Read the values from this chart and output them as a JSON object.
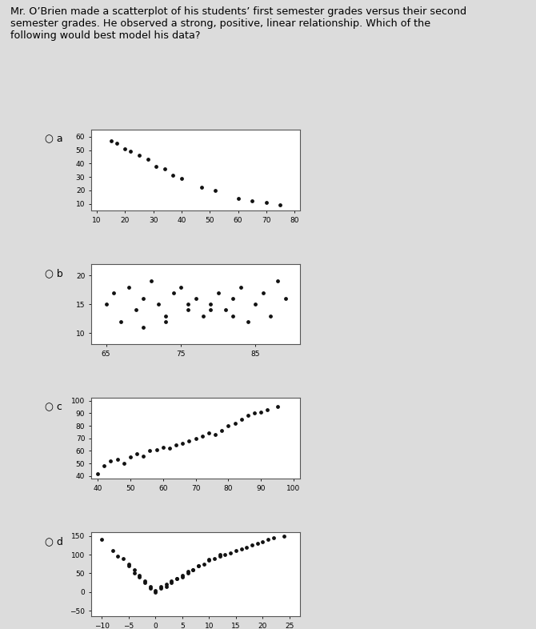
{
  "question_text": "Mr. O’Brien made a scatterplot of his students’ first semester grades versus their second\nsemester grades. He observed a strong, positive, linear relationship. Which of the\nfollowing would best model his data?",
  "bg_color": "#dcdcdc",
  "plot_bg": "#ffffff",
  "plot_a": {
    "label": "a",
    "x": [
      15,
      17,
      20,
      22,
      25,
      28,
      31,
      34,
      37,
      40,
      47,
      52,
      60,
      65,
      70,
      75
    ],
    "y": [
      57,
      55,
      51,
      49,
      46,
      43,
      38,
      36,
      31,
      29,
      22,
      20,
      14,
      12,
      11,
      9
    ],
    "xlim": [
      8,
      82
    ],
    "ylim": [
      5,
      65
    ],
    "xticks": [
      10,
      20,
      30,
      40,
      50,
      60,
      70,
      80
    ],
    "yticks": [
      10,
      20,
      30,
      40,
      50,
      60
    ]
  },
  "plot_b": {
    "label": "b",
    "x": [
      65,
      66,
      67,
      68,
      69,
      70,
      71,
      72,
      73,
      74,
      75,
      76,
      77,
      78,
      79,
      80,
      81,
      82,
      83,
      84,
      85,
      86,
      87,
      88,
      89,
      70,
      73,
      76,
      79,
      82
    ],
    "y": [
      15,
      17,
      12,
      18,
      14,
      16,
      19,
      15,
      13,
      17,
      18,
      14,
      16,
      13,
      15,
      17,
      14,
      16,
      18,
      12,
      15,
      17,
      13,
      19,
      16,
      11,
      12,
      15,
      14,
      13
    ],
    "xlim": [
      63,
      91
    ],
    "ylim": [
      8,
      22
    ],
    "xticks": [
      65,
      75,
      85
    ],
    "yticks": [
      10,
      15,
      20
    ]
  },
  "plot_c": {
    "label": "c",
    "x": [
      40,
      42,
      44,
      46,
      48,
      50,
      52,
      54,
      56,
      58,
      60,
      62,
      64,
      66,
      68,
      70,
      72,
      74,
      76,
      78,
      80,
      82,
      84,
      86,
      88,
      90,
      92,
      95
    ],
    "y": [
      42,
      48,
      52,
      53,
      50,
      55,
      58,
      56,
      60,
      61,
      63,
      62,
      65,
      66,
      68,
      70,
      72,
      74,
      73,
      76,
      80,
      82,
      85,
      88,
      90,
      91,
      93,
      95
    ],
    "xlim": [
      38,
      102
    ],
    "ylim": [
      38,
      102
    ],
    "xticks": [
      40,
      50,
      60,
      70,
      80,
      90,
      100
    ],
    "yticks": [
      40,
      50,
      60,
      70,
      80,
      90,
      100
    ]
  },
  "plot_d": {
    "label": "d",
    "x": [
      -10,
      -8,
      -6,
      -5,
      -4,
      -3,
      -2,
      -1,
      0,
      1,
      2,
      3,
      4,
      5,
      6,
      7,
      8,
      10,
      12,
      14,
      16,
      18,
      20,
      22,
      24,
      -7,
      -5,
      -3,
      -1,
      1,
      3,
      5,
      7,
      9,
      11,
      13,
      15,
      17,
      19,
      21,
      -4,
      -2,
      0,
      2,
      4,
      6,
      8,
      10,
      12
    ],
    "y": [
      140,
      110,
      90,
      75,
      60,
      45,
      30,
      15,
      5,
      10,
      20,
      25,
      35,
      40,
      50,
      60,
      70,
      85,
      95,
      105,
      115,
      125,
      135,
      145,
      150,
      95,
      70,
      40,
      10,
      15,
      30,
      45,
      60,
      75,
      90,
      100,
      110,
      120,
      130,
      140,
      50,
      25,
      0,
      15,
      35,
      55,
      70,
      88,
      100
    ],
    "xlim": [
      -12,
      27
    ],
    "ylim": [
      -65,
      160
    ],
    "xticks": [
      -10,
      -5,
      0,
      5,
      10,
      15,
      20,
      25
    ],
    "yticks": [
      -50,
      0,
      50,
      100,
      150
    ]
  },
  "dot_color": "#111111",
  "dot_size": 6,
  "font_size_label": 9,
  "font_size_tick": 6.5,
  "font_size_question": 9.2
}
